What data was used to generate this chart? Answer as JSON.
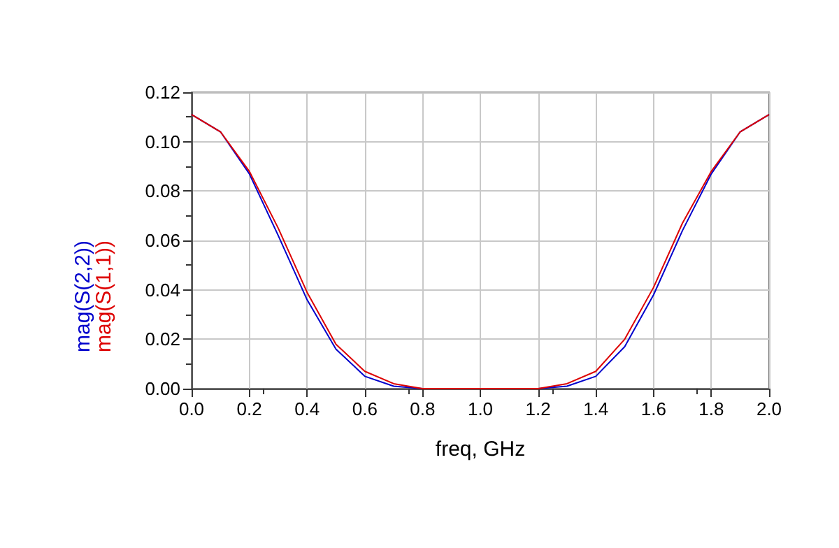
{
  "chart_data": {
    "type": "line",
    "xlabel": "freq, GHz",
    "x": [
      0.0,
      0.1,
      0.2,
      0.3,
      0.4,
      0.5,
      0.6,
      0.7,
      0.8,
      0.9,
      1.0,
      1.1,
      1.2,
      1.3,
      1.4,
      1.5,
      1.6,
      1.7,
      1.8,
      1.9,
      2.0
    ],
    "series": [
      {
        "name": "mag(S(2,2))",
        "color": "#0000cc",
        "values": [
          0.111,
          0.104,
          0.087,
          0.062,
          0.036,
          0.016,
          0.005,
          0.001,
          0.0,
          0.0,
          0.0,
          0.0,
          0.0,
          0.001,
          0.005,
          0.017,
          0.038,
          0.064,
          0.087,
          0.104,
          0.111
        ]
      },
      {
        "name": "mag(S(1,1))",
        "color": "#dd0000",
        "values": [
          0.111,
          0.104,
          0.088,
          0.065,
          0.039,
          0.018,
          0.007,
          0.002,
          0.0,
          0.0,
          0.0,
          0.0,
          0.0,
          0.002,
          0.007,
          0.02,
          0.041,
          0.067,
          0.088,
          0.104,
          0.111
        ]
      }
    ],
    "xlim": [
      0,
      2
    ],
    "xticks": [
      {
        "value": 0,
        "label": "0.0"
      },
      {
        "value": 0.2,
        "label": "0.2"
      },
      {
        "value": 0.4,
        "label": "0.4"
      },
      {
        "value": 0.6,
        "label": "0.6"
      },
      {
        "value": 0.8,
        "label": "0.8"
      },
      {
        "value": 1,
        "label": "1.0"
      },
      {
        "value": 1.2,
        "label": "1.2"
      },
      {
        "value": 1.4,
        "label": "1.4"
      },
      {
        "value": 1.6,
        "label": "1.6"
      },
      {
        "value": 1.8,
        "label": "1.8"
      },
      {
        "value": 2,
        "label": "2.0"
      }
    ],
    "ylim": [
      0,
      0.12
    ],
    "yticks": [
      {
        "value": 0,
        "label": "0.00"
      },
      {
        "value": 0.02,
        "label": "0.02"
      },
      {
        "value": 0.04,
        "label": "0.04"
      },
      {
        "value": 0.06,
        "label": "0.06"
      },
      {
        "value": 0.08,
        "label": "0.08"
      },
      {
        "value": 0.1,
        "label": "0.10"
      },
      {
        "value": 0.12,
        "label": "0.12"
      }
    ],
    "grid": true,
    "marker": "none",
    "line_style": "solid"
  }
}
